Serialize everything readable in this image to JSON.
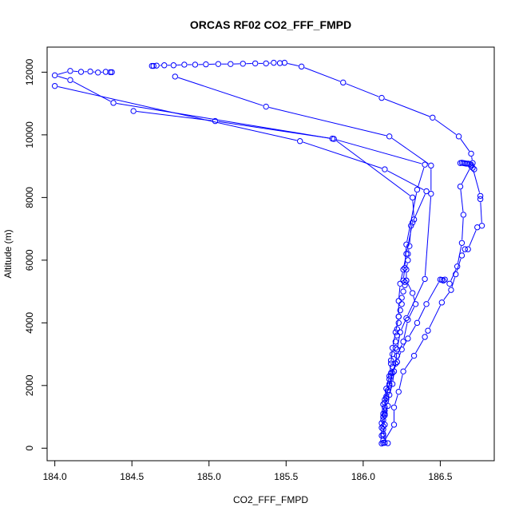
{
  "chart_data": {
    "type": "scatter",
    "title": "ORCAS RF02 CO2_FFF_FMPD",
    "xlabel": "CO2_FFF_FMPD",
    "ylabel": "Altitude (m)",
    "xlim": [
      183.95,
      186.85
    ],
    "ylim": [
      -400,
      12800
    ],
    "x_ticks": [
      "184.0",
      "184.5",
      "185.0",
      "185.5",
      "186.0",
      "186.5"
    ],
    "x_tick_values": [
      184.0,
      184.5,
      185.0,
      185.5,
      186.0,
      186.5
    ],
    "y_ticks": [
      "0",
      "2000",
      "4000",
      "6000",
      "8000",
      "10000",
      "12000"
    ],
    "y_tick_values": [
      0,
      2000,
      4000,
      6000,
      8000,
      10000,
      12000
    ],
    "grid": false,
    "legend": "none",
    "color": "#0000ff",
    "series": [
      {
        "points": [
          [
            186.12,
            150
          ],
          [
            186.13,
            250
          ],
          [
            186.12,
            400
          ],
          [
            186.13,
            600
          ],
          [
            186.12,
            800
          ],
          [
            186.13,
            1000
          ],
          [
            186.14,
            1200
          ],
          [
            186.13,
            1400
          ],
          [
            186.15,
            1600
          ],
          [
            186.16,
            1800
          ],
          [
            186.17,
            2000
          ],
          [
            186.17,
            2200
          ],
          [
            186.18,
            2400
          ],
          [
            186.19,
            2600
          ],
          [
            186.18,
            2800
          ],
          [
            186.19,
            3000
          ],
          [
            186.21,
            3200
          ],
          [
            186.21,
            3400
          ],
          [
            186.22,
            3600
          ],
          [
            186.22,
            3800
          ],
          [
            186.23,
            4000
          ],
          [
            186.23,
            4200
          ],
          [
            186.24,
            4400
          ],
          [
            186.25,
            4600
          ],
          [
            186.25,
            4800
          ],
          [
            186.26,
            5000
          ],
          [
            186.27,
            5200
          ],
          [
            186.27,
            5300
          ],
          [
            186.28,
            5350
          ],
          [
            186.28,
            5700
          ],
          [
            186.29,
            6000
          ],
          [
            186.29,
            6200
          ],
          [
            186.3,
            6450
          ],
          [
            186.31,
            7100
          ],
          [
            186.33,
            7300
          ],
          [
            186.32,
            8000
          ],
          [
            185.81,
            9870
          ],
          [
            184.38,
            11020
          ],
          [
            184.1,
            11750
          ],
          [
            184.0,
            11900
          ],
          [
            184.1,
            12040
          ],
          [
            184.17,
            12010
          ],
          [
            184.23,
            12020
          ],
          [
            184.28,
            11990
          ],
          [
            184.33,
            12010
          ],
          [
            184.36,
            12000
          ],
          [
            184.37,
            12000
          ]
        ]
      },
      {
        "points": [
          [
            184.0,
            11560
          ],
          [
            185.59,
            9800
          ],
          [
            186.14,
            8900
          ],
          [
            186.41,
            8200
          ],
          [
            186.32,
            7200
          ],
          [
            186.28,
            6200
          ],
          [
            186.26,
            5700
          ],
          [
            186.24,
            5250
          ],
          [
            186.23,
            4700
          ],
          [
            186.23,
            4200
          ],
          [
            186.21,
            3700
          ],
          [
            186.19,
            3200
          ],
          [
            186.18,
            2700
          ],
          [
            186.17,
            2300
          ],
          [
            186.15,
            1900
          ],
          [
            186.14,
            1550
          ],
          [
            186.14,
            1300
          ],
          [
            186.14,
            1100
          ],
          [
            186.13,
            900
          ],
          [
            186.13,
            700
          ],
          [
            186.13,
            450
          ],
          [
            186.14,
            170
          ],
          [
            186.16,
            160
          ]
        ]
      },
      {
        "points": [
          [
            186.13,
            170
          ],
          [
            186.2,
            750
          ],
          [
            186.2,
            1300
          ],
          [
            186.23,
            1800
          ],
          [
            186.26,
            2450
          ],
          [
            186.33,
            2950
          ],
          [
            186.4,
            3550
          ],
          [
            186.42,
            3750
          ],
          [
            186.51,
            4650
          ],
          [
            186.57,
            5050
          ],
          [
            186.6,
            5550
          ],
          [
            186.64,
            6150
          ],
          [
            186.66,
            6350
          ],
          [
            186.68,
            6350
          ],
          [
            186.74,
            7050
          ],
          [
            186.77,
            7100
          ],
          [
            186.76,
            7950
          ],
          [
            186.76,
            8050
          ],
          [
            186.71,
            8950
          ],
          [
            186.72,
            8900
          ],
          [
            186.71,
            9100
          ],
          [
            186.7,
            9400
          ],
          [
            186.62,
            9950
          ],
          [
            186.45,
            10550
          ],
          [
            186.12,
            11180
          ],
          [
            185.87,
            11670
          ],
          [
            185.6,
            12180
          ],
          [
            185.49,
            12300
          ],
          [
            185.46,
            12290
          ],
          [
            185.42,
            12300
          ],
          [
            185.37,
            12280
          ],
          [
            185.3,
            12280
          ],
          [
            185.22,
            12270
          ],
          [
            185.14,
            12260
          ],
          [
            185.06,
            12260
          ],
          [
            184.98,
            12250
          ],
          [
            184.91,
            12240
          ],
          [
            184.84,
            12240
          ],
          [
            184.77,
            12220
          ],
          [
            184.71,
            12220
          ],
          [
            184.66,
            12210
          ],
          [
            184.64,
            12200
          ],
          [
            184.63,
            12200
          ]
        ]
      },
      {
        "points": [
          [
            184.78,
            11860
          ],
          [
            185.37,
            10900
          ],
          [
            186.17,
            9950
          ],
          [
            186.44,
            9020
          ],
          [
            186.44,
            8120
          ],
          [
            186.4,
            5400
          ],
          [
            186.28,
            4150
          ],
          [
            186.24,
            3700
          ],
          [
            186.22,
            3150
          ],
          [
            186.21,
            2700
          ],
          [
            186.18,
            2300
          ],
          [
            186.16,
            1850
          ],
          [
            186.14,
            1450
          ],
          [
            186.13,
            1100
          ],
          [
            186.14,
            750
          ],
          [
            186.13,
            400
          ]
        ]
      },
      {
        "points": [
          [
            184.51,
            10760
          ],
          [
            185.04,
            10440
          ],
          [
            185.8,
            9880
          ],
          [
            186.4,
            9050
          ],
          [
            186.35,
            8250
          ],
          [
            186.28,
            6500
          ],
          [
            186.27,
            5750
          ],
          [
            186.26,
            5350
          ],
          [
            186.28,
            5350
          ],
          [
            186.32,
            4950
          ],
          [
            186.34,
            4600
          ],
          [
            186.29,
            4100
          ],
          [
            186.26,
            3400
          ],
          [
            186.22,
            2950
          ],
          [
            186.2,
            2450
          ],
          [
            186.19,
            2050
          ],
          [
            186.17,
            1700
          ],
          [
            186.16,
            1350
          ],
          [
            186.14,
            1050
          ]
        ]
      },
      {
        "points": [
          [
            186.63,
            9100
          ],
          [
            186.64,
            9110
          ],
          [
            186.65,
            9100
          ],
          [
            186.66,
            9090
          ],
          [
            186.67,
            9080
          ],
          [
            186.68,
            9080
          ],
          [
            186.69,
            9070
          ],
          [
            186.7,
            9050
          ],
          [
            186.7,
            9000
          ],
          [
            186.63,
            8350
          ],
          [
            186.65,
            7450
          ],
          [
            186.64,
            6550
          ],
          [
            186.61,
            5800
          ],
          [
            186.56,
            5250
          ],
          [
            186.53,
            5380
          ],
          [
            186.52,
            5350
          ],
          [
            186.51,
            5370
          ],
          [
            186.5,
            5380
          ],
          [
            186.41,
            4600
          ],
          [
            186.35,
            4000
          ],
          [
            186.29,
            3500
          ],
          [
            186.25,
            3150
          ],
          [
            186.22,
            2750
          ],
          [
            186.19,
            2400
          ],
          [
            186.17,
            2050
          ],
          [
            186.15,
            1650
          ],
          [
            186.14,
            1300
          ],
          [
            186.13,
            1000
          ],
          [
            186.12,
            650
          ]
        ]
      }
    ]
  }
}
